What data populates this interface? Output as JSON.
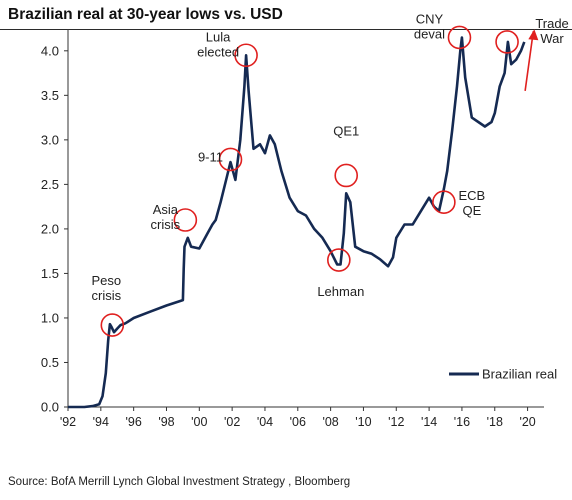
{
  "title": "Brazilian real at 30-year lows vs. USD",
  "source": "Source: BofA Merrill Lynch Global Investment Strategy , Bloomberg",
  "chart_data": {
    "type": "line",
    "title": "Brazilian real at 30-year lows vs. USD",
    "xlabel": "",
    "ylabel": "",
    "xlim": [
      1992,
      2021
    ],
    "ylim": [
      0,
      4.2
    ],
    "yticks": [
      "0.0",
      "0.5",
      "1.0",
      "1.5",
      "2.0",
      "2.5",
      "3.0",
      "3.5",
      "4.0"
    ],
    "xticks": [
      "'92",
      "'94",
      "'96",
      "'98",
      "'00",
      "'02",
      "'04",
      "'06",
      "'08",
      "'10",
      "'12",
      "'14",
      "'16",
      "'18",
      "'20"
    ],
    "legend_position": "bottom-right",
    "grid": false,
    "series": [
      {
        "name": "Brazilian real",
        "color": "#152a52",
        "x": [
          1992.0,
          1993.0,
          1993.5,
          1993.9,
          1994.1,
          1994.3,
          1994.45,
          1994.55,
          1994.65,
          1994.8,
          1995.0,
          1995.2,
          1995.5,
          1996.0,
          1997.0,
          1998.0,
          1999.0,
          1999.05,
          1999.1,
          1999.3,
          1999.5,
          2000.0,
          2000.5,
          2000.8,
          2001.0,
          2001.3,
          2001.7,
          2001.9,
          2002.2,
          2002.5,
          2002.75,
          2002.85,
          2003.0,
          2003.3,
          2003.7,
          2004.0,
          2004.3,
          2004.6,
          2005.0,
          2005.5,
          2006.0,
          2006.5,
          2007.0,
          2007.5,
          2008.0,
          2008.4,
          2008.6,
          2008.8,
          2008.95,
          2009.2,
          2009.5,
          2010.0,
          2010.5,
          2011.0,
          2011.5,
          2011.8,
          2012.0,
          2012.5,
          2013.0,
          2013.5,
          2014.0,
          2014.3,
          2014.6,
          2014.9,
          2015.1,
          2015.4,
          2015.7,
          2015.9,
          2016.0,
          2016.2,
          2016.6,
          2017.0,
          2017.4,
          2017.8,
          2018.0,
          2018.3,
          2018.6,
          2018.8,
          2019.0,
          2019.3,
          2019.6,
          2019.8
        ],
        "values": [
          0.0,
          0.0,
          0.01,
          0.03,
          0.12,
          0.38,
          0.75,
          0.93,
          0.9,
          0.84,
          0.88,
          0.92,
          0.94,
          1.0,
          1.07,
          1.14,
          1.2,
          1.55,
          1.8,
          1.9,
          1.8,
          1.78,
          1.95,
          2.05,
          2.1,
          2.3,
          2.6,
          2.75,
          2.55,
          3.0,
          3.6,
          3.95,
          3.55,
          2.9,
          2.95,
          2.85,
          3.05,
          2.95,
          2.65,
          2.35,
          2.2,
          2.15,
          2.0,
          1.9,
          1.75,
          1.6,
          1.6,
          1.95,
          2.4,
          2.3,
          1.8,
          1.75,
          1.72,
          1.66,
          1.58,
          1.68,
          1.9,
          2.05,
          2.05,
          2.2,
          2.35,
          2.25,
          2.2,
          2.45,
          2.65,
          3.1,
          3.6,
          4.0,
          4.15,
          3.7,
          3.25,
          3.2,
          3.15,
          3.2,
          3.3,
          3.6,
          3.75,
          4.1,
          3.85,
          3.9,
          4.0,
          4.1
        ]
      }
    ],
    "annotations": [
      {
        "label": "Peso crisis",
        "lines": [
          "Peso",
          "crisis"
        ],
        "x": 1994.7,
        "y": 0.92
      },
      {
        "label": "Asia crisis",
        "lines": [
          "Asia",
          "crisis"
        ],
        "x": 1999.15,
        "y": 2.1
      },
      {
        "label": "9-11",
        "lines": [
          "9-11"
        ],
        "x": 2001.9,
        "y": 2.78
      },
      {
        "label": "Lula elected",
        "lines": [
          "Lula",
          "elected"
        ],
        "x": 2002.85,
        "y": 3.95
      },
      {
        "label": "QE1",
        "lines": [
          "QE1"
        ],
        "x": 2008.95,
        "y": 2.6
      },
      {
        "label": "Lehman",
        "lines": [
          "Lehman"
        ],
        "x": 2008.5,
        "y": 1.65
      },
      {
        "label": "ECB QE",
        "lines": [
          "ECB",
          "QE"
        ],
        "x": 2014.9,
        "y": 2.3
      },
      {
        "label": "CNY deval",
        "lines": [
          "CNY",
          "deval"
        ],
        "x": 2015.85,
        "y": 4.15
      },
      {
        "label": "Trade War",
        "lines": [
          "Trade",
          "War"
        ],
        "x": 2018.75,
        "y": 4.1
      }
    ]
  }
}
